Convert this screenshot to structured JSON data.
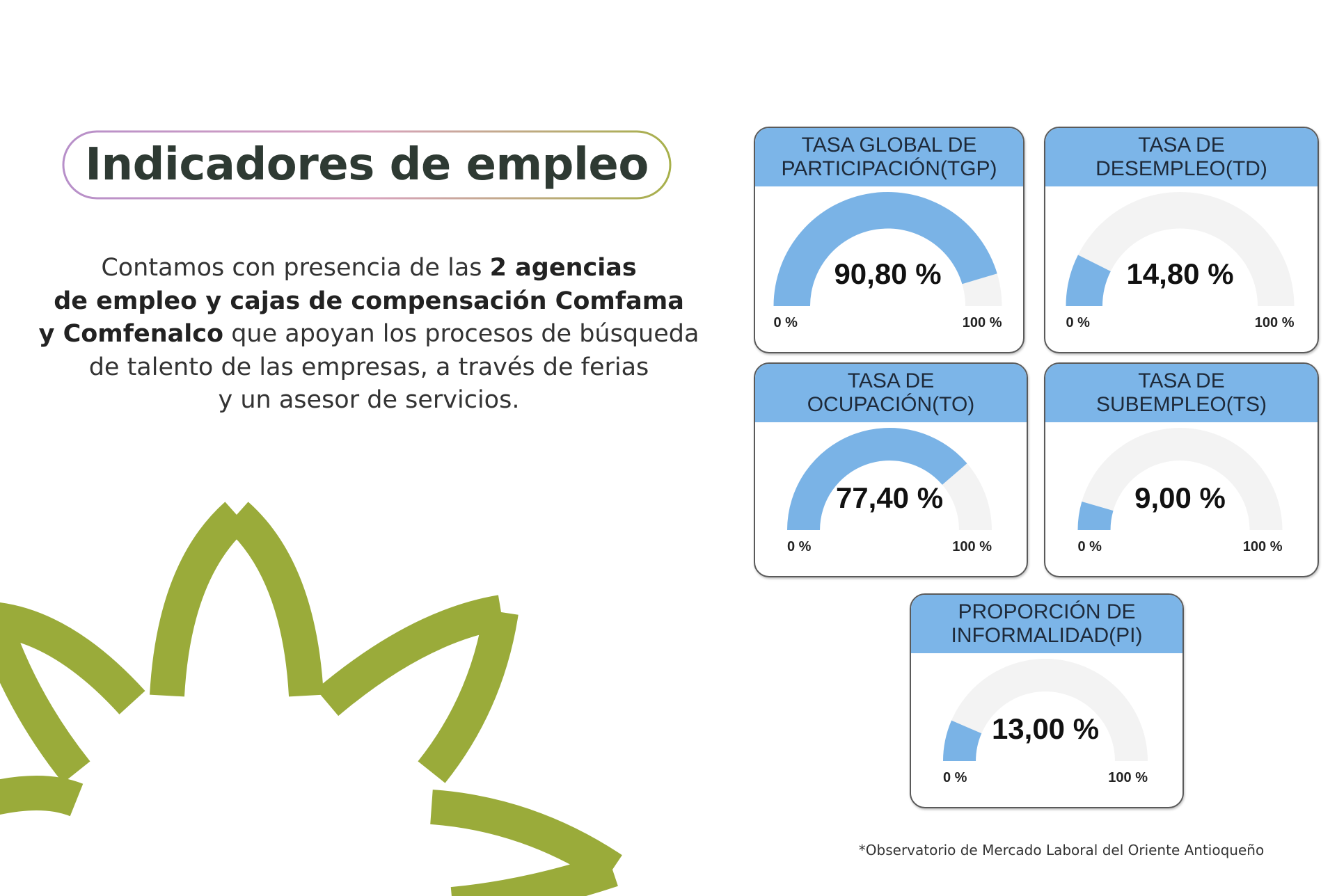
{
  "title": "Indicadores de empleo",
  "paragraph": {
    "lines": [
      [
        {
          "text": "Contamos con presencia de las ",
          "bold": false
        },
        {
          "text": "2 agencias",
          "bold": true
        }
      ],
      [
        {
          "text": "de empleo y cajas de compensación Comfama",
          "bold": true
        }
      ],
      [
        {
          "text": "y Comfenalco",
          "bold": true
        },
        {
          "text": " que apoyan los procesos de búsqueda",
          "bold": false
        }
      ],
      [
        {
          "text": "de talento de las empresas, a través de ferias",
          "bold": false
        }
      ],
      [
        {
          "text": "y un asesor de servicios.",
          "bold": false
        }
      ]
    ]
  },
  "source": "*Observatorio de Mercado Laboral del Oriente Antioqueño",
  "chart_data": [
    {
      "type": "gauge",
      "title": [
        "TASA GLOBAL DE",
        "PARTICIPACIÓN(TGP)"
      ],
      "values": [
        90.8
      ],
      "value_labels": [
        "90,80 %"
      ],
      "ylim": [
        0,
        100
      ],
      "yticks": [
        {
          "value": 0,
          "label": "0 %"
        },
        {
          "value": 100,
          "label": "100 %"
        }
      ],
      "color": "#7ab3e6",
      "track_color": "#f3f3f3"
    },
    {
      "type": "gauge",
      "title": [
        "TASA DE",
        "DESEMPLEO(TD)"
      ],
      "values": [
        14.8
      ],
      "value_labels": [
        "14,80 %"
      ],
      "ylim": [
        0,
        100
      ],
      "yticks": [
        {
          "value": 0,
          "label": "0 %"
        },
        {
          "value": 100,
          "label": "100 %"
        }
      ],
      "color": "#7ab3e6",
      "track_color": "#f3f3f3"
    },
    {
      "type": "gauge",
      "title": [
        "TASA DE",
        "OCUPACIÓN(TO)"
      ],
      "values": [
        77.4
      ],
      "value_labels": [
        "77,40 %"
      ],
      "ylim": [
        0,
        100
      ],
      "yticks": [
        {
          "value": 0,
          "label": "0 %"
        },
        {
          "value": 100,
          "label": "100 %"
        }
      ],
      "color": "#7ab3e6",
      "track_color": "#f3f3f3"
    },
    {
      "type": "gauge",
      "title": [
        "TASA DE",
        "SUBEMPLEO(TS)"
      ],
      "values": [
        9.0
      ],
      "value_labels": [
        "9,00 %"
      ],
      "ylim": [
        0,
        100
      ],
      "yticks": [
        {
          "value": 0,
          "label": "0 %"
        },
        {
          "value": 100,
          "label": "100 %"
        }
      ],
      "color": "#7ab3e6",
      "track_color": "#f3f3f3"
    },
    {
      "type": "gauge",
      "title": [
        "PROPORCIÓN DE",
        "INFORMALIDAD(PI)"
      ],
      "values": [
        13.0
      ],
      "value_labels": [
        "13,00 %"
      ],
      "ylim": [
        0,
        100
      ],
      "yticks": [
        {
          "value": 0,
          "label": "0 %"
        },
        {
          "value": 100,
          "label": "100 %"
        }
      ],
      "color": "#7ab3e6",
      "track_color": "#f3f3f3"
    }
  ]
}
